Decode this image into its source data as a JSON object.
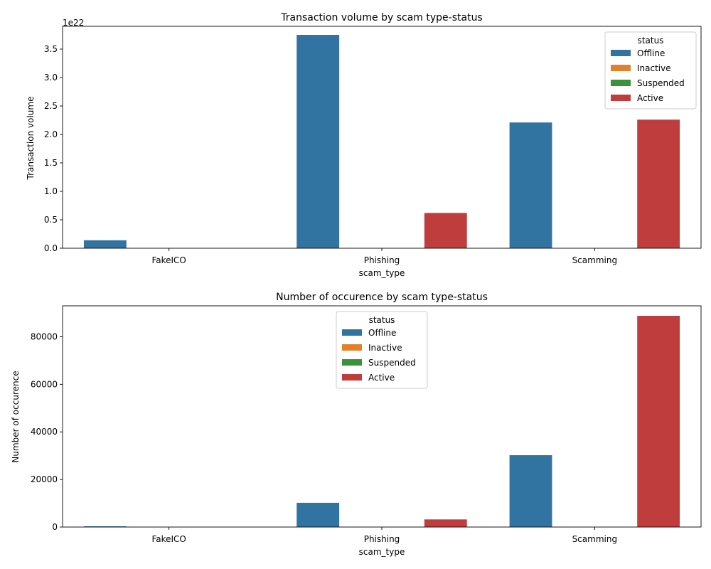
{
  "chart_data": [
    {
      "type": "bar",
      "title": "Transaction volume by scam type-status",
      "xlabel": "scam_type",
      "ylabel": "Transaction volume",
      "offset_label": "1e22",
      "categories": [
        "FakeICO",
        "Phishing",
        "Scamming"
      ],
      "ylim": [
        0,
        3.9
      ],
      "yticks": [
        0.0,
        0.5,
        1.0,
        1.5,
        2.0,
        2.5,
        3.0,
        3.5
      ],
      "ytick_labels": [
        "0.0",
        "0.5",
        "1.0",
        "1.5",
        "2.0",
        "2.5",
        "3.0",
        "3.5"
      ],
      "legend": {
        "title": "status",
        "placement": "top-right"
      },
      "series": [
        {
          "name": "Offline",
          "color": "#3274a1",
          "values": [
            0.14,
            3.75,
            2.21
          ]
        },
        {
          "name": "Inactive",
          "color": "#e1812c",
          "values": [
            0,
            0,
            0
          ]
        },
        {
          "name": "Suspended",
          "color": "#3a923a",
          "values": [
            0,
            0,
            0
          ]
        },
        {
          "name": "Active",
          "color": "#c03d3e",
          "values": [
            0,
            0.62,
            2.26
          ]
        }
      ],
      "grid": false
    },
    {
      "type": "bar",
      "title": "Number of occurence by scam type-status",
      "xlabel": "scam_type",
      "ylabel": "Number of occurence",
      "categories": [
        "FakeICO",
        "Phishing",
        "Scamming"
      ],
      "ylim": [
        0,
        93000
      ],
      "yticks": [
        0,
        20000,
        40000,
        60000,
        80000
      ],
      "ytick_labels": [
        "0",
        "20000",
        "40000",
        "60000",
        "80000"
      ],
      "legend": {
        "title": "status",
        "placement": "top-center"
      },
      "series": [
        {
          "name": "Offline",
          "color": "#3274a1",
          "values": [
            300,
            10200,
            30200
          ]
        },
        {
          "name": "Inactive",
          "color": "#e1812c",
          "values": [
            0,
            0,
            0
          ]
        },
        {
          "name": "Suspended",
          "color": "#3a923a",
          "values": [
            0,
            0,
            0
          ]
        },
        {
          "name": "Active",
          "color": "#c03d3e",
          "values": [
            0,
            3200,
            88800
          ]
        }
      ],
      "grid": false
    }
  ]
}
